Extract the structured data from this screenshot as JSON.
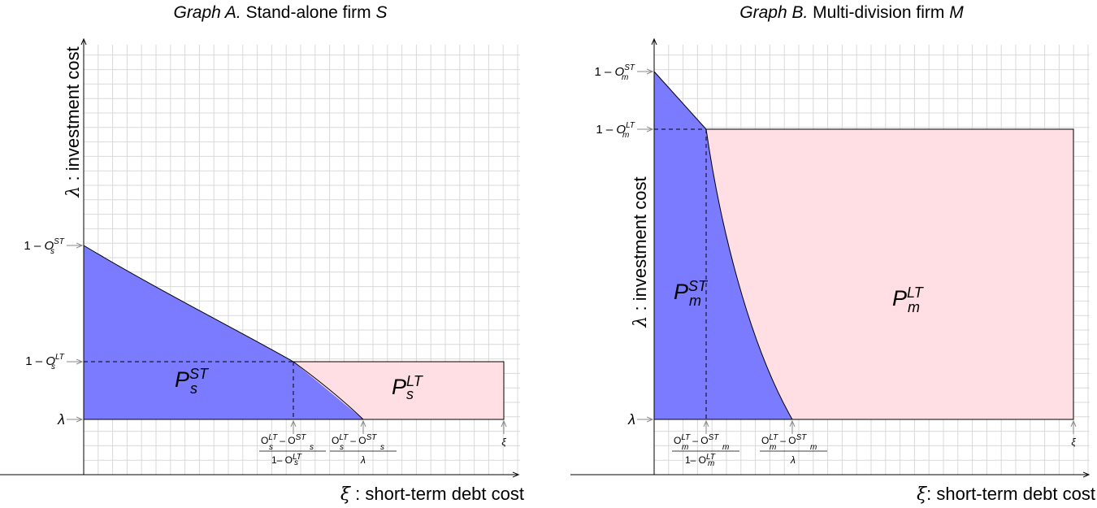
{
  "colors": {
    "short_term_region": "#7b7bff",
    "long_term_region": "#ffdfe3",
    "grid": "#d9d9d9",
    "axis": "#000000",
    "marker": "#888888"
  },
  "graph_a": {
    "title_italic": "Graph A.",
    "title_rest": " Stand-alone firm ",
    "title_var": "S",
    "y_axis_label": "investment cost",
    "y_axis_symbol": "λ",
    "x_axis_label": " : short-term debt cost",
    "x_axis_symbol": "ξ",
    "y_tick_st": {
      "pre": "1 – ",
      "var": "O",
      "sub": "s",
      "sup": "ST"
    },
    "y_tick_lt": {
      "pre": "1 – ",
      "var": "O",
      "sub": "s",
      "sup": "LT"
    },
    "y_tick_lambda": "λ",
    "x_tick_1": {
      "num_a": "O",
      "num_a_sub": "s",
      "num_a_sup": "LT",
      "minus": "– ",
      "num_b": "O",
      "num_b_sub": "s",
      "num_b_sup": "ST",
      "den": "1– O",
      "den_sub": "s",
      "den_sup": "LT"
    },
    "x_tick_2": {
      "num_a": "O",
      "num_a_sub": "s",
      "num_a_sup": "LT",
      "minus": "– ",
      "num_b": "O",
      "num_b_sub": "s",
      "num_b_sup": "ST",
      "den": "λ"
    },
    "x_tick_end": "ξ",
    "region_st": {
      "var": "P",
      "sub": "s",
      "sup": "ST"
    },
    "region_lt": {
      "var": "P",
      "sub": "s",
      "sup": "LT"
    }
  },
  "graph_b": {
    "title_italic": "Graph B.",
    "title_rest": " Multi-division firm ",
    "title_var": "M",
    "y_axis_label": "investment cost",
    "y_axis_symbol": "λ",
    "x_axis_label": ": short-term debt cost",
    "x_axis_symbol": "ξ",
    "y_tick_st": {
      "pre": "1 – ",
      "var": "O",
      "sub": "m",
      "sup": "ST"
    },
    "y_tick_lt": {
      "pre": "1 – ",
      "var": "O",
      "sub": "m",
      "sup": "LT"
    },
    "y_tick_lambda": "λ",
    "x_tick_1": {
      "num_a": "O",
      "num_a_sub": "m",
      "num_a_sup": "LT",
      "minus": "– ",
      "num_b": "O",
      "num_b_sub": "m",
      "num_b_sup": "ST",
      "den": "1– O",
      "den_sub": "m",
      "den_sup": "LT"
    },
    "x_tick_2": {
      "num_a": "O",
      "num_a_sub": "m",
      "num_a_sup": "LT",
      "minus": "– ",
      "num_b": "O",
      "num_b_sub": "m",
      "num_b_sup": "ST",
      "den": "λ"
    },
    "x_tick_end": "ξ",
    "region_st": {
      "var": "P",
      "sub": "m",
      "sup": "ST"
    },
    "region_lt": {
      "var": "P",
      "sub": "m",
      "sup": "LT"
    }
  }
}
